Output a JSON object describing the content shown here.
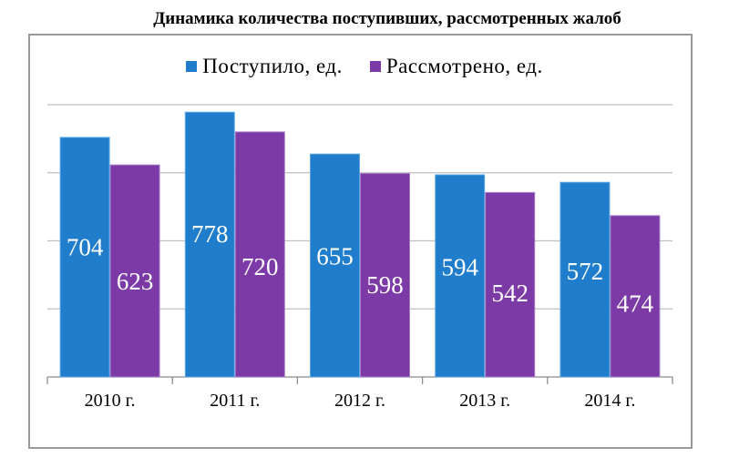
{
  "chart_data": {
    "type": "bar",
    "title": "Динамика количества поступивших, рассмотренных жалоб",
    "categories": [
      "2010 г.",
      "2011 г.",
      "2012 г.",
      "2013 г.",
      "2014 г."
    ],
    "series": [
      {
        "name": "Поступило,  ед.",
        "values": [
          704,
          778,
          655,
          594,
          572
        ],
        "color": "#1f7dcb"
      },
      {
        "name": "Рассмотрено,  ед.",
        "values": [
          623,
          720,
          598,
          542,
          474
        ],
        "color": "#7b3aa6"
      }
    ],
    "ylim": [
      0,
      800
    ],
    "grid": true,
    "legend_position": "top"
  }
}
